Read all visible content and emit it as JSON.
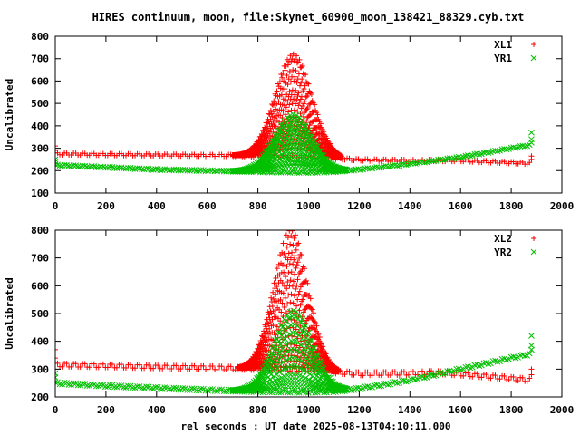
{
  "title": "HIRES continuum, moon, file:Skynet_60900_moon_138421_88329.cyb.txt",
  "chart_data": [
    {
      "type": "scatter",
      "panel": "top",
      "xlabel": "",
      "ylabel": "Uncalibrated",
      "xlim": [
        0,
        2000
      ],
      "ylim": [
        100,
        800
      ],
      "xticks": [
        "0",
        "200",
        "400",
        "600",
        "800",
        "1000",
        "1200",
        "1400",
        "1600",
        "1800",
        "2000"
      ],
      "yticks": [
        "100",
        "200",
        "300",
        "400",
        "500",
        "600",
        "700",
        "800"
      ],
      "legend_position": "top-right",
      "grid": false,
      "series": [
        {
          "name": "XL1",
          "color": "#ff0000",
          "marker": "plus",
          "baseline": [
            [
              0,
              275
            ],
            [
              200,
              272
            ],
            [
              400,
              270
            ],
            [
              600,
              268
            ],
            [
              700,
              268
            ],
            [
              800,
              265
            ],
            [
              1000,
              262
            ],
            [
              1100,
              255
            ],
            [
              1200,
              248
            ],
            [
              1400,
              245
            ],
            [
              1600,
              245
            ],
            [
              1700,
              240
            ],
            [
              1880,
              232
            ]
          ],
          "ripple": 4,
          "passes": [
            720,
            700,
            690,
            650,
            620,
            600,
            560,
            540,
            520,
            500,
            470,
            440,
            420,
            400,
            380,
            360,
            340,
            320,
            300
          ],
          "pass_range": [
            700,
            1130
          ],
          "peak_x": 940,
          "extras": [
            [
              0,
              310
            ],
            [
              0,
              290
            ],
            [
              1880,
              265
            ],
            [
              1880,
              250
            ]
          ]
        },
        {
          "name": "YR1",
          "color": "#00c000",
          "marker": "cross",
          "baseline": [
            [
              0,
              225
            ],
            [
              200,
              215
            ],
            [
              400,
              205
            ],
            [
              600,
              200
            ],
            [
              800,
              195
            ],
            [
              1000,
              192
            ],
            [
              1100,
              195
            ],
            [
              1200,
              205
            ],
            [
              1400,
              230
            ],
            [
              1600,
              260
            ],
            [
              1800,
              300
            ],
            [
              1880,
              315
            ]
          ],
          "ripple": 2,
          "passes": [
            450,
            430,
            410,
            390,
            370,
            350,
            330,
            310,
            290,
            270,
            250,
            235,
            220
          ],
          "pass_range": [
            700,
            1150
          ],
          "peak_x": 940,
          "extras": [
            [
              0,
              250
            ],
            [
              0,
              240
            ],
            [
              1880,
              370
            ],
            [
              1880,
              340
            ],
            [
              1880,
              325
            ]
          ]
        }
      ]
    },
    {
      "type": "scatter",
      "panel": "bottom",
      "xlabel": "rel seconds : UT date 2025-08-13T04:10:11.000",
      "ylabel": "Uncalibrated",
      "xlim": [
        0,
        2000
      ],
      "ylim": [
        200,
        800
      ],
      "xticks": [
        "0",
        "200",
        "400",
        "600",
        "800",
        "1000",
        "1200",
        "1400",
        "1600",
        "1800",
        "2000"
      ],
      "yticks": [
        "200",
        "300",
        "400",
        "500",
        "600",
        "700",
        "800"
      ],
      "legend_position": "top-right",
      "grid": false,
      "series": [
        {
          "name": "XL2",
          "color": "#ff0000",
          "marker": "plus",
          "baseline": [
            [
              0,
              315
            ],
            [
              200,
              312
            ],
            [
              400,
              308
            ],
            [
              600,
              305
            ],
            [
              800,
              302
            ],
            [
              1000,
              298
            ],
            [
              1100,
              290
            ],
            [
              1200,
              283
            ],
            [
              1400,
              285
            ],
            [
              1500,
              288
            ],
            [
              1600,
              282
            ],
            [
              1700,
              275
            ],
            [
              1880,
              260
            ]
          ],
          "ripple": 6,
          "passes": [
            800,
            780,
            750,
            720,
            700,
            680,
            650,
            620,
            600,
            570,
            540,
            510,
            480,
            450,
            420,
            390,
            370,
            350,
            330,
            310
          ],
          "pass_range": [
            720,
            1120
          ],
          "peak_x": 930,
          "extras": [
            [
              0,
              370
            ],
            [
              0,
              340
            ],
            [
              1880,
              300
            ],
            [
              1880,
              280
            ]
          ]
        },
        {
          "name": "YR2",
          "color": "#00c000",
          "marker": "cross",
          "baseline": [
            [
              0,
              250
            ],
            [
              200,
              240
            ],
            [
              400,
              232
            ],
            [
              600,
              225
            ],
            [
              800,
              220
            ],
            [
              1000,
              218
            ],
            [
              1100,
              220
            ],
            [
              1200,
              230
            ],
            [
              1400,
              260
            ],
            [
              1500,
              280
            ],
            [
              1600,
              300
            ],
            [
              1800,
              340
            ],
            [
              1880,
              355
            ]
          ],
          "ripple": 3,
          "passes": [
            510,
            490,
            460,
            430,
            400,
            370,
            340,
            310,
            280,
            260,
            240
          ],
          "pass_range": [
            700,
            1150
          ],
          "peak_x": 940,
          "extras": [
            [
              0,
              285
            ],
            [
              0,
              270
            ],
            [
              1880,
              420
            ],
            [
              1880,
              385
            ],
            [
              1880,
              370
            ]
          ]
        }
      ]
    }
  ]
}
